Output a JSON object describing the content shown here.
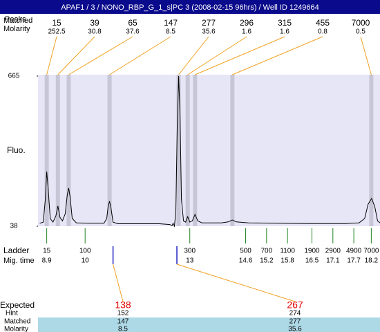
{
  "chart_data": {
    "type": "line",
    "title": "APAF1 / 3 / NONO_RBP_G_1_s|PC 3 (2008-02-15 96hrs) / Well ID 1249664",
    "peak_row_labels": [
      "Peaks",
      "Matched",
      "Molarity"
    ],
    "peaks": [
      {
        "size": "15",
        "molarity": "252.5",
        "time": 8.9
      },
      {
        "size": "39",
        "molarity": "30.8",
        "time": 9.22
      },
      {
        "size": "65",
        "molarity": "37.6",
        "time": 9.53
      },
      {
        "size": "147",
        "molarity": "8.5",
        "time": 10.7
      },
      {
        "size": "277",
        "molarity": "35.6",
        "time": 12.68
      },
      {
        "size": "296",
        "molarity": "1.6",
        "time": 12.94
      },
      {
        "size": "315",
        "molarity": "1.6",
        "time": 13.15
      },
      {
        "size": "455",
        "molarity": "0.8",
        "time": 14.22
      },
      {
        "size": "7000",
        "molarity": "0.5",
        "time": 18.2
      }
    ],
    "y_label": "Fluo.",
    "ylim": [
      38,
      665
    ],
    "yticks": [
      665,
      38
    ],
    "xlim": [
      8.65,
      18.45
    ],
    "series": [
      {
        "x": [
          8.7,
          8.8,
          8.86,
          8.9,
          8.94,
          9.0,
          9.08,
          9.16,
          9.22,
          9.28,
          9.35,
          9.43,
          9.49,
          9.53,
          9.57,
          9.63,
          9.75,
          10.14,
          10.54,
          10.62,
          10.66,
          10.7,
          10.74,
          10.8,
          10.94,
          11.53,
          12.13,
          12.43,
          12.49,
          12.52,
          12.56,
          12.6,
          12.64,
          12.68,
          12.72,
          12.76,
          12.82,
          12.88,
          12.94,
          13.0,
          13.07,
          13.15,
          13.23,
          13.35,
          13.9,
          14.1,
          14.22,
          14.33,
          14.69,
          15.48,
          16.47,
          17.46,
          17.85,
          18.01,
          18.11,
          18.21,
          18.3,
          18.38,
          18.45
        ],
        "values": [
          50,
          55,
          150,
          266,
          200,
          70,
          55,
          80,
          122,
          75,
          60,
          90,
          170,
          197,
          160,
          70,
          52,
          50,
          50,
          70,
          120,
          142,
          115,
          55,
          48,
          48,
          48,
          45,
          40,
          50,
          38,
          100,
          450,
          665,
          500,
          150,
          60,
          55,
          78,
          55,
          60,
          87,
          60,
          52,
          52,
          56,
          64,
          56,
          52,
          50,
          49,
          49,
          52,
          70,
          130,
          154,
          120,
          60,
          52
        ]
      }
    ],
    "ladder_label": "Ladder",
    "mig_time_label": "Mig. time",
    "ladder": [
      {
        "size": "15",
        "time": 8.9
      },
      {
        "size": "100",
        "time": 10
      },
      {
        "size": "300",
        "time": 13
      },
      {
        "size": "500",
        "time": 14.6
      },
      {
        "size": "700",
        "time": 15.2
      },
      {
        "size": "1100",
        "time": 15.8
      },
      {
        "size": "1900",
        "time": 16.5
      },
      {
        "size": "2900",
        "time": 17.1
      },
      {
        "size": "4900",
        "time": 17.7
      },
      {
        "size": "7000",
        "time": 18.2
      }
    ],
    "expected_row_labels": [
      "Expected",
      "Hint",
      "Matched",
      "Molarity"
    ],
    "expected": [
      {
        "time": 10.8,
        "values": [
          "138",
          "152",
          "147",
          "8.5"
        ]
      },
      {
        "time": 12.63,
        "values": [
          "267",
          "274",
          "277",
          "35.6"
        ]
      }
    ]
  }
}
